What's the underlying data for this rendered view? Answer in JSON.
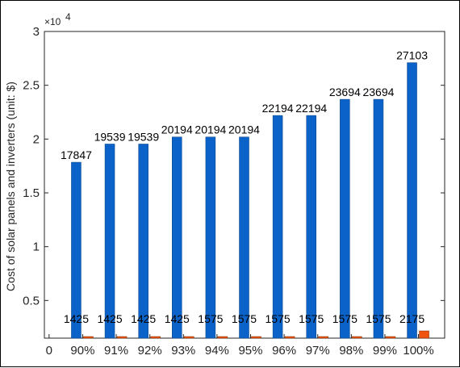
{
  "chart_data": {
    "type": "bar",
    "categories": [
      "0",
      "90%",
      "91%",
      "92%",
      "93%",
      "94%",
      "95%",
      "96%",
      "97%",
      "98%",
      "99%",
      "100%"
    ],
    "series": [
      {
        "values": [
          0,
          17847,
          19539,
          19539,
          20194,
          20194,
          20194,
          22194,
          22194,
          23694,
          23694,
          27103
        ],
        "color": "#0b63c9"
      },
      {
        "values": [
          0,
          1425,
          1425,
          1425,
          1425,
          1575,
          1575,
          1575,
          1575,
          1575,
          1575,
          2175
        ],
        "color": "#f0540e"
      }
    ],
    "data_labels": [
      [
        "",
        "17847",
        "19539",
        "19539",
        "20194",
        "20194",
        "20194",
        "22194",
        "22194",
        "23694",
        "23694",
        "27103"
      ],
      [
        "",
        "1425",
        "1425",
        "1425",
        "1425",
        "1575",
        "1575",
        "1575",
        "1575",
        "1575",
        "1575",
        "2175"
      ]
    ],
    "ylabel": "Cost of solar panels and inverters (unit: $)",
    "xlabel": "",
    "title": "",
    "y_tick_labels": [
      "0.5",
      "1",
      "1.5",
      "2",
      "2.5",
      "3"
    ],
    "y_tick_values": [
      5000,
      10000,
      15000,
      20000,
      25000,
      30000
    ],
    "y_exponent_label": "×10",
    "y_exponent_power": "4",
    "ylim": [
      0,
      30000
    ],
    "y_axis_visible_min": 1500,
    "grid": false,
    "legend": "none"
  }
}
